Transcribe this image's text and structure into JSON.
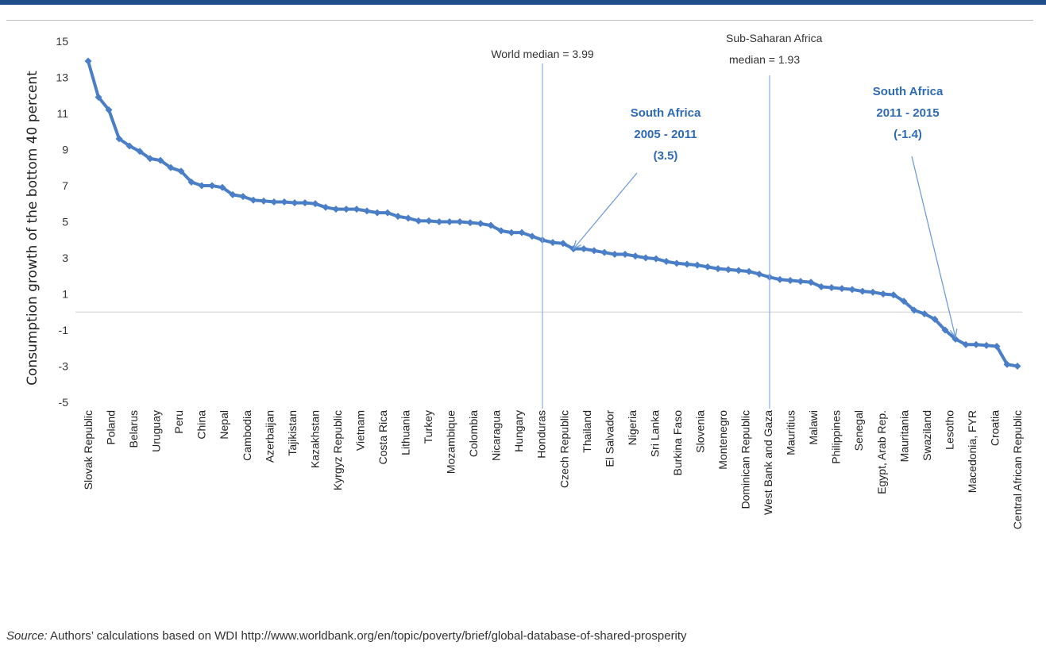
{
  "chart_data": {
    "type": "line",
    "ylabel": "Consumption growth of the bottom 40 percent",
    "ylim": [
      -5,
      15
    ],
    "yticks": [
      -5,
      -3,
      -1,
      1,
      3,
      5,
      7,
      9,
      11,
      13,
      15
    ],
    "tick_labels": [
      "Slovak Republic",
      "Poland",
      "Belarus",
      "Uruguay",
      "Peru",
      "China",
      "Nepal",
      "Cambodia",
      "Azerbaijan",
      "Tajikistan",
      "Kazakhstan",
      "Kyrgyz Republic",
      "Vietnam",
      "Costa Rica",
      "Lithuania",
      "Turkey",
      "Mozambique",
      "Colombia",
      "Nicaragua",
      "Hungary",
      "Honduras",
      "Czech Republic",
      "Thailand",
      "El Salvador",
      "Nigeria",
      "Sri Lanka",
      "Burkina Faso",
      "Slovenia",
      "Montenegro",
      "Dominican Republic",
      "West Bank and Gaza",
      "Mauritius",
      "Malawi",
      "Philippines",
      "Senegal",
      "Egypt, Arab Rep.",
      "Mauritania",
      "Swaziland",
      "Lesotho",
      "Macedonia, FYR",
      "Croatia",
      "Central African Republic"
    ],
    "values": [
      13.9,
      11.9,
      11.2,
      9.6,
      9.2,
      8.9,
      8.5,
      8.4,
      8.0,
      7.8,
      7.2,
      7.0,
      7.0,
      6.9,
      6.5,
      6.4,
      6.2,
      6.15,
      6.1,
      6.1,
      6.05,
      6.05,
      6.0,
      5.8,
      5.7,
      5.7,
      5.7,
      5.6,
      5.5,
      5.5,
      5.3,
      5.2,
      5.05,
      5.05,
      5.0,
      5.0,
      5.0,
      4.95,
      4.9,
      4.8,
      4.5,
      4.4,
      4.4,
      4.2,
      3.99,
      3.85,
      3.8,
      3.5,
      3.5,
      3.4,
      3.3,
      3.2,
      3.2,
      3.1,
      3.0,
      2.95,
      2.8,
      2.7,
      2.65,
      2.6,
      2.5,
      2.4,
      2.35,
      2.3,
      2.25,
      2.1,
      1.93,
      1.8,
      1.75,
      1.7,
      1.65,
      1.4,
      1.35,
      1.3,
      1.25,
      1.15,
      1.1,
      1.0,
      0.95,
      0.6,
      0.1,
      -0.1,
      -0.4,
      -1.0,
      -1.5,
      -1.8,
      -1.8,
      -1.85,
      -1.9,
      -2.9,
      -3.0
    ],
    "reference_lines": [
      {
        "label": "World median = 3.99",
        "value": 3.99
      },
      {
        "label_lines": [
          "Sub-Saharan Africa",
          "median = 1.93"
        ],
        "value": 1.93
      }
    ],
    "annotations": [
      {
        "lines": [
          "South Africa",
          "2005 - 2011",
          "(3.5)"
        ],
        "value": 3.5
      },
      {
        "lines": [
          "South Africa",
          "2011 - 2015",
          "(-1.4)"
        ],
        "value": -1.4
      }
    ],
    "colors": {
      "line": "#4a7ec7",
      "annotation": "#2e6bb5",
      "refline": "#8aaede",
      "zeroline": "#d0d0d0"
    }
  },
  "source": {
    "label": "Source:",
    "text": " Authors’ calculations based on WDI http://www.worldbank.org/en/topic/poverty/brief/global-database-of-shared-prosperity"
  }
}
